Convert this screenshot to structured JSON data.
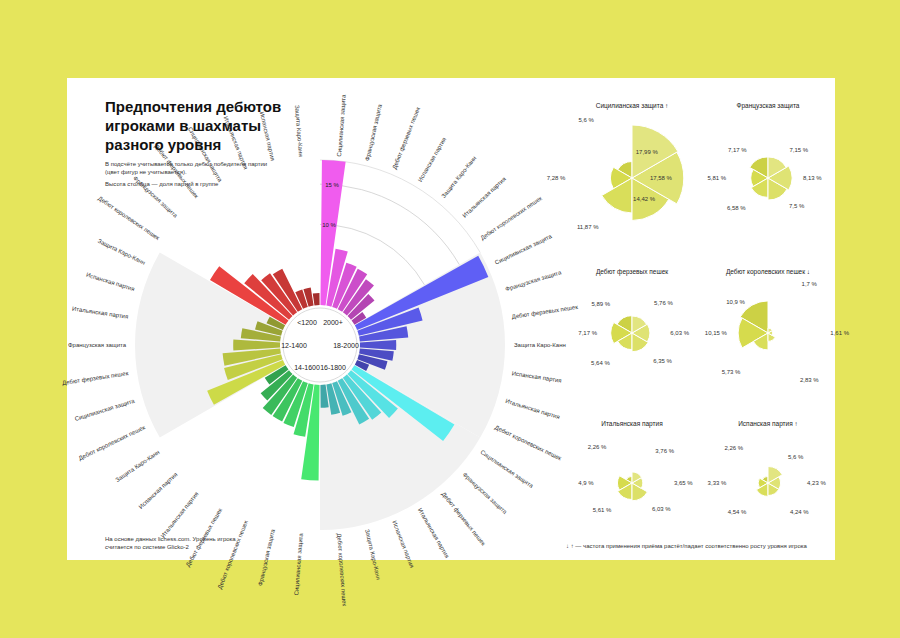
{
  "page": {
    "title": "Предпочтения дебютов игроками в шахматы разного уровня",
    "notes": [
      "В подсчёте учитывается только дебют победителя партии (цвет фигур не учитывается).",
      "Высота столбца — доля партий в группе"
    ],
    "source": "На основе данных lichess.com. Уровень игрока считается по системе Glicko-2",
    "footnote": "↓ ↑ — частота применения приёма растёт/падает соответственно росту уровня игрока"
  },
  "chart_data": [
    {
      "type": "radial_bar",
      "ylim": [
        0,
        18
      ],
      "yticks": [
        {
          "value": 10,
          "label": "10 %"
        },
        {
          "value": 15,
          "label": "15 %"
        }
      ],
      "groups": [
        {
          "name": "2000+",
          "color": "#f05cee",
          "categories": [
            "Сицилианская защита",
            "Французская защита",
            "Дебют ферзевых пешек",
            "Испанская партия",
            "Защита Каро-Канн",
            "Итальянская партия",
            "Дебют королевских пешек"
          ],
          "values": [
            17.99,
            7.15,
            5.76,
            5.6,
            5.0,
            3.76,
            1.7
          ]
        },
        {
          "name": "18-2000",
          "color": "#5f5ff5",
          "categories": [
            "Сицилианская защита",
            "Французская защита",
            "Дебют ферзевых пешек",
            "Защита Каро-Канн",
            "Испанская партия",
            "Итальянская партия",
            "Дебют королевских пешек"
          ],
          "values": [
            17.58,
            8.13,
            6.03,
            4.5,
            4.23,
            3.65,
            1.61
          ]
        },
        {
          "name": "16-1800",
          "color": "#5ceef0",
          "categories": [
            "Сицилианская защита",
            "Французская защита",
            "Дебют ферзевых пешек",
            "Итальянская партия",
            "Испанская партия",
            "Защита Каро-Канн",
            "Дебют королевских пешек"
          ],
          "values": [
            14.42,
            7.5,
            6.35,
            6.03,
            4.24,
            3.8,
            2.83
          ]
        },
        {
          "name": "14-1600",
          "color": "#48e870",
          "categories": [
            "Сицилианская защита",
            "Французская защита",
            "Дебют королевских пешек",
            "Дебют ферзевых пешек",
            "Итальянская партия",
            "Испанская партия",
            "Защита Каро-Канн"
          ],
          "values": [
            11.87,
            6.58,
            5.73,
            5.64,
            5.61,
            4.54,
            3.0
          ]
        },
        {
          "name": "12-1400",
          "color": "#cdda48",
          "categories": [
            "Дебют королевских пешек",
            "Сицилианская защита",
            "Дебют ферзевых пешек",
            "Французская защита",
            "Итальянская партия",
            "Испанская партия",
            "Защита Каро-Канн"
          ],
          "values": [
            10.15,
            7.28,
            7.17,
            5.81,
            4.9,
            3.33,
            2.2
          ]
        },
        {
          "name": "<1200",
          "color": "#ea4240",
          "categories": [
            "Дебют королевских пешек",
            "Французская защита",
            "Дебют ферзевых пешек",
            "Сицилианская защита",
            "Итальянская партия",
            "Испанская партия",
            "Защита Каро-Канн"
          ],
          "values": [
            10.9,
            7.17,
            5.89,
            5.6,
            2.26,
            2.26,
            1.5
          ]
        }
      ]
    },
    {
      "type": "rose",
      "title": "Сицилианская защита ↑",
      "color": "#d5da48",
      "data_labels": true,
      "categories": [
        "<1200",
        "12-1400",
        "14-1600",
        "16-1800",
        "18-2000",
        "2000+"
      ],
      "values": [
        5.6,
        7.28,
        11.87,
        14.42,
        17.58,
        17.99
      ],
      "value_labels": [
        "5,6 %",
        "7,28 %",
        "11,87 %",
        "14,42 %",
        "17,58 %",
        "17,99 %"
      ]
    },
    {
      "type": "rose",
      "title": "Французская защита",
      "color": "#d5da48",
      "data_labels": true,
      "categories": [
        "<1200",
        "12-1400",
        "14-1600",
        "16-1800",
        "18-2000",
        "2000+"
      ],
      "values": [
        7.17,
        5.81,
        6.58,
        7.5,
        8.13,
        7.15
      ],
      "value_labels": [
        "7,17 %",
        "5,81 %",
        "6,58 %",
        "7,5 %",
        "8,13 %",
        "7,15 %"
      ]
    },
    {
      "type": "rose",
      "title": "Дебют ферзевых пешек",
      "color": "#d5da48",
      "data_labels": true,
      "categories": [
        "<1200",
        "12-1400",
        "14-1600",
        "16-1800",
        "18-2000",
        "2000+"
      ],
      "values": [
        5.89,
        7.17,
        5.64,
        6.35,
        6.03,
        5.76
      ],
      "value_labels": [
        "5,89 %",
        "7,17 %",
        "5,64 %",
        "6,35 %",
        "6,03 %",
        "5,76 %"
      ]
    },
    {
      "type": "rose",
      "title": "Дебют королевских пешек ↓",
      "color": "#d5da48",
      "data_labels": true,
      "categories": [
        "<1200",
        "12-1400",
        "14-1600",
        "16-1800",
        "18-2000",
        "2000+"
      ],
      "values": [
        10.9,
        10.15,
        5.73,
        2.83,
        1.61,
        1.7
      ],
      "value_labels": [
        "10,9 %",
        "10,15 %",
        "5,73 %",
        "2,83 %",
        "1,61 %",
        "1,7 %"
      ]
    },
    {
      "type": "rose",
      "title": "Итальянская партия",
      "color": "#d5da48",
      "data_labels": true,
      "categories": [
        "<1200",
        "12-1400",
        "14-1600",
        "16-1800",
        "18-2000",
        "2000+"
      ],
      "values": [
        2.26,
        4.9,
        5.61,
        6.03,
        3.65,
        3.76
      ],
      "value_labels": [
        "2,26 %",
        "4,9 %",
        "5,61 %",
        "6,03 %",
        "3,65 %",
        "3,76 %"
      ]
    },
    {
      "type": "rose",
      "title": "Испанская партия ↑",
      "color": "#d5da48",
      "data_labels": true,
      "categories": [
        "<1200",
        "12-1400",
        "14-1600",
        "16-1800",
        "18-2000",
        "2000+"
      ],
      "values": [
        2.26,
        3.33,
        4.54,
        4.24,
        4.23,
        5.6
      ],
      "value_labels": [
        "2,26 %",
        "3,33 %",
        "4,54 %",
        "4,24 %",
        "4,23 %",
        "5,6 %"
      ]
    }
  ]
}
